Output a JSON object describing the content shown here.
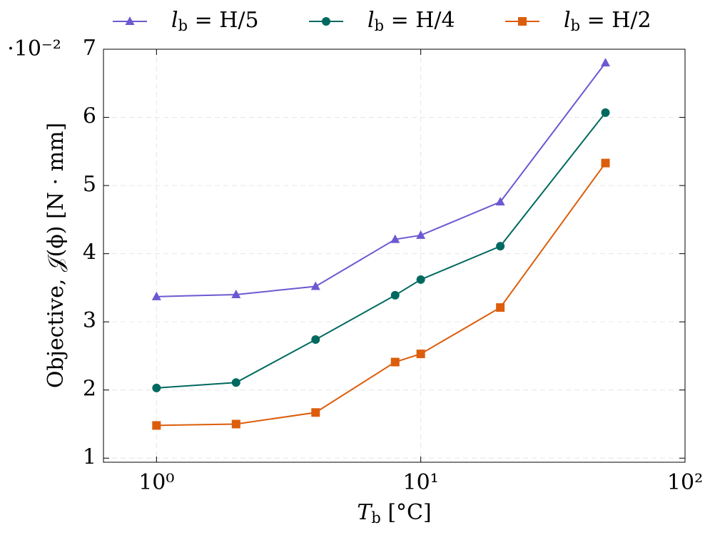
{
  "chart_data": {
    "type": "line",
    "x_label": "Tb [°C]",
    "y_label": "Objective, 𝒥(ϕ) [N · mm]",
    "y_scale_label": "·10⁻²",
    "x": [
      1,
      2,
      4,
      8,
      10,
      20,
      50
    ],
    "series": [
      {
        "name": "lb = H/5",
        "color": "#6e58d2",
        "marker": "triangle",
        "values": [
          3.37,
          3.4,
          3.52,
          4.21,
          4.27,
          4.76,
          6.8
        ]
      },
      {
        "name": "lb = H/4",
        "color": "#00695f",
        "marker": "circle",
        "values": [
          2.03,
          2.11,
          2.74,
          3.39,
          3.62,
          4.11,
          6.07
        ]
      },
      {
        "name": "lb = H/2",
        "color": "#dc5d0b",
        "marker": "square",
        "values": [
          1.48,
          1.5,
          1.67,
          2.41,
          2.53,
          3.21,
          5.33
        ]
      }
    ],
    "xscale": "log",
    "xlim": [
      0.63,
      100
    ],
    "xticks": [
      {
        "value": 1,
        "label": "10⁰"
      },
      {
        "value": 10,
        "label": "10¹"
      },
      {
        "value": 100,
        "label": "10²"
      }
    ],
    "ylim": [
      0.94,
      7
    ],
    "yticks": [
      1,
      2,
      3,
      4,
      5,
      6,
      7
    ],
    "grid": true,
    "legend": "top"
  }
}
